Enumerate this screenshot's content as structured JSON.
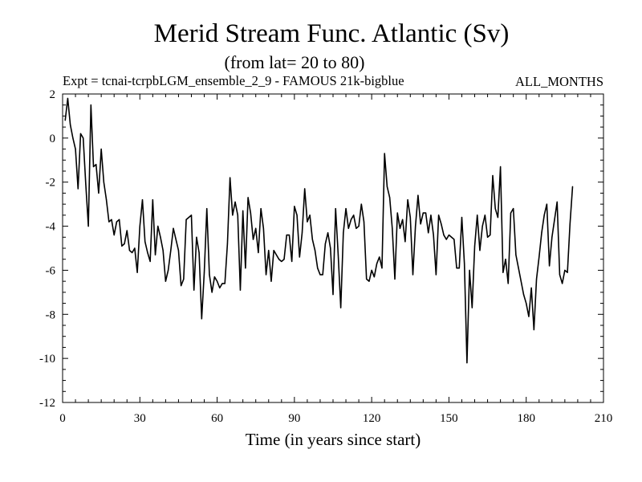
{
  "chart_data": {
    "type": "line",
    "title": "Merid Stream Func. Atlantic (Sv)",
    "subtitle": "(from lat= 20 to 80)",
    "experiment": "Expt = tcnai-tcrpbLGM_ensemble_2_9 - FAMOUS 21k-bigblue",
    "period": "ALL_MONTHS",
    "xlabel": "Time (in years since start)",
    "ylabel": "",
    "xlim": [
      0,
      210
    ],
    "ylim": [
      -12,
      2
    ],
    "x_ticks": [
      0,
      30,
      60,
      90,
      120,
      150,
      180,
      210
    ],
    "y_ticks": [
      2,
      0,
      -2,
      -4,
      -6,
      -8,
      -10,
      -12
    ],
    "x_minor_step": 5,
    "y_minor_step": 0.5,
    "grid": false,
    "series": [
      {
        "name": "Merid Stream Func.",
        "x_start": 1,
        "x_step": 1,
        "values": [
          0.8,
          1.8,
          0.6,
          0.0,
          -0.5,
          -2.3,
          0.2,
          0.0,
          -2.1,
          -4.0,
          1.5,
          -1.3,
          -1.2,
          -2.5,
          -0.5,
          -2.0,
          -2.8,
          -3.8,
          -3.7,
          -4.4,
          -3.8,
          -3.7,
          -4.9,
          -4.8,
          -4.2,
          -5.1,
          -5.2,
          -5.0,
          -6.1,
          -4.0,
          -2.8,
          -4.7,
          -5.2,
          -5.6,
          -2.8,
          -5.3,
          -4.0,
          -4.5,
          -5.1,
          -6.5,
          -6.0,
          -5.1,
          -4.1,
          -4.6,
          -5.1,
          -6.7,
          -6.4,
          -3.7,
          -3.6,
          -3.5,
          -6.9,
          -4.5,
          -5.2,
          -8.2,
          -6.1,
          -3.2,
          -6.2,
          -7.0,
          -6.3,
          -6.5,
          -6.8,
          -6.6,
          -6.6,
          -4.8,
          -1.8,
          -3.5,
          -2.9,
          -3.5,
          -6.9,
          -3.3,
          -5.9,
          -2.7,
          -3.4,
          -4.6,
          -4.1,
          -5.2,
          -3.2,
          -4.1,
          -6.2,
          -5.1,
          -6.5,
          -5.1,
          -5.3,
          -5.5,
          -5.6,
          -5.5,
          -4.4,
          -4.4,
          -5.6,
          -3.1,
          -3.5,
          -5.4,
          -4.3,
          -2.3,
          -3.8,
          -3.5,
          -4.6,
          -5.1,
          -5.9,
          -6.2,
          -6.2,
          -4.8,
          -4.3,
          -5.0,
          -7.1,
          -3.2,
          -5.3,
          -7.7,
          -4.3,
          -3.2,
          -4.1,
          -3.7,
          -3.5,
          -4.1,
          -4.0,
          -3.0,
          -3.8,
          -6.4,
          -6.5,
          -6.0,
          -6.3,
          -5.7,
          -5.4,
          -5.9,
          -0.7,
          -2.2,
          -2.7,
          -4.1,
          -6.4,
          -3.4,
          -4.1,
          -3.7,
          -4.7,
          -2.8,
          -3.6,
          -6.2,
          -4.0,
          -2.6,
          -3.9,
          -3.4,
          -3.4,
          -4.3,
          -3.5,
          -4.4,
          -6.2,
          -3.5,
          -3.9,
          -4.4,
          -4.6,
          -4.4,
          -4.5,
          -4.6,
          -5.9,
          -5.9,
          -3.6,
          -5.7,
          -10.2,
          -6.0,
          -7.7,
          -4.9,
          -3.5,
          -5.1,
          -4.0,
          -3.5,
          -4.5,
          -4.4,
          -1.7,
          -3.2,
          -3.6,
          -1.3,
          -6.1,
          -5.5,
          -6.6,
          -3.4,
          -3.2,
          -5.3,
          -5.9,
          -6.5,
          -7.1,
          -7.5,
          -8.1,
          -6.8,
          -8.7,
          -6.4,
          -5.4,
          -4.3,
          -3.5,
          -3.0,
          -5.8,
          -4.5,
          -3.7,
          -2.9,
          -6.2,
          -6.6,
          -6.0,
          -6.1,
          -3.9,
          -2.2
        ]
      }
    ]
  }
}
